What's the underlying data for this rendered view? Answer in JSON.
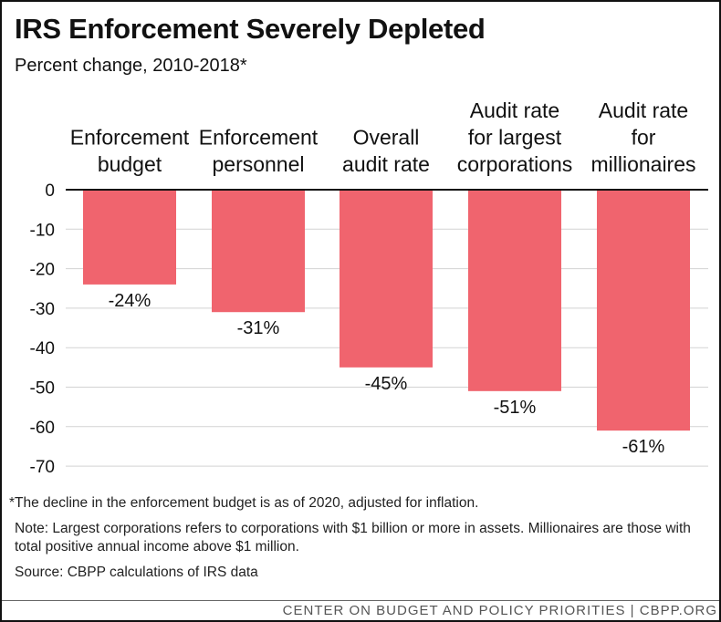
{
  "header": {
    "title": "IRS Enforcement Severely Depleted",
    "subtitle": "Percent change, 2010-2018*"
  },
  "chart_data": {
    "type": "bar",
    "title": "IRS Enforcement Severely Depleted",
    "subtitle": "Percent change, 2010-2018*",
    "categories": [
      [
        "Enforcement",
        "budget"
      ],
      [
        "Enforcement",
        "personnel"
      ],
      [
        "Overall",
        "audit rate"
      ],
      [
        "Audit rate",
        "for largest",
        "corporations"
      ],
      [
        "Audit rate",
        "for",
        "millionaires"
      ]
    ],
    "values": [
      -24,
      -31,
      -45,
      -51,
      -61
    ],
    "data_labels": [
      "-24%",
      "-31%",
      "-45%",
      "-51%",
      "-61%"
    ],
    "ylim": [
      -70,
      0
    ],
    "yticks": [
      0,
      -10,
      -20,
      -30,
      -40,
      -50,
      -60,
      -70
    ],
    "xlabel": "",
    "ylabel": "",
    "grid": true,
    "bar_color": "#f0646e"
  },
  "notes": {
    "footnote": "*The decline in the enforcement budget is as of 2020, adjusted for inflation.",
    "note": "Note: Largest corporations refers to corporations with $1 billion or more in assets. Millionaires are those with total positive annual income above $1 million.",
    "source": "Source: CBPP calculations of IRS data"
  },
  "footer": {
    "text": "CENTER ON BUDGET AND POLICY PRIORITIES | CBPP.ORG"
  }
}
